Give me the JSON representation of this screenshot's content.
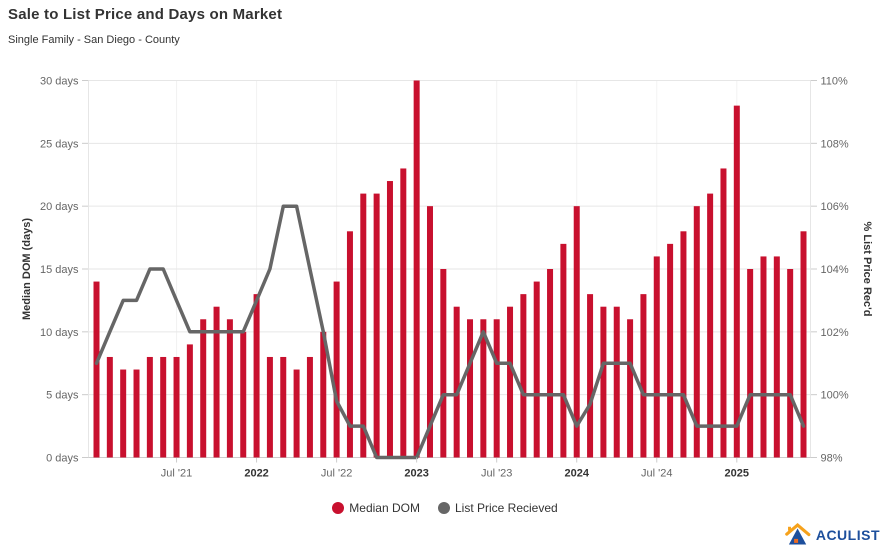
{
  "header": {
    "title": "Sale to List Price and Days on Market",
    "subtitle": "Single Family - San Diego - County"
  },
  "chart_data": {
    "type": "combo-bar-line",
    "x": [
      "Jan '21",
      "Feb '21",
      "Mar '21",
      "Apr '21",
      "May '21",
      "Jun '21",
      "Jul '21",
      "Aug '21",
      "Sep '21",
      "Oct '21",
      "Nov '21",
      "Dec '21",
      "Jan '22",
      "Feb '22",
      "Mar '22",
      "Apr '22",
      "May '22",
      "Jun '22",
      "Jul '22",
      "Aug '22",
      "Sep '22",
      "Oct '22",
      "Nov '22",
      "Dec '22",
      "Jan '23",
      "Feb '23",
      "Mar '23",
      "Apr '23",
      "May '23",
      "Jun '23",
      "Jul '23",
      "Aug '23",
      "Sep '23",
      "Oct '23",
      "Nov '23",
      "Dec '23",
      "Jan '24",
      "Feb '24",
      "Mar '24",
      "Apr '24",
      "May '24",
      "Jun '24",
      "Jul '24",
      "Aug '24",
      "Sep '24",
      "Oct '24",
      "Nov '24",
      "Dec '24",
      "Jan '25",
      "Feb '25",
      "Mar '25",
      "Apr '25",
      "May '25",
      "Jun '25"
    ],
    "series": [
      {
        "name": "Median DOM",
        "type": "bar",
        "axis": "left",
        "color": "#c8102e",
        "values": [
          14,
          8,
          7,
          7,
          8,
          8,
          8,
          9,
          11,
          12,
          11,
          10,
          13,
          8,
          8,
          7,
          8,
          10,
          14,
          18,
          21,
          21,
          22,
          23,
          30,
          20,
          15,
          12,
          11,
          11,
          11,
          12,
          13,
          14,
          15,
          17,
          20,
          13,
          12,
          12,
          11,
          13,
          16,
          17,
          18,
          20,
          21,
          23,
          28,
          15,
          16,
          16,
          15,
          18
        ]
      },
      {
        "name": "List Price Recieved",
        "type": "line",
        "axis": "right",
        "color": "#666666",
        "values": [
          101,
          102,
          103,
          103,
          104,
          104,
          103,
          102,
          102,
          102,
          102,
          102,
          103,
          104,
          106,
          106,
          104,
          102,
          99.8,
          99,
          99,
          98,
          98,
          98,
          98,
          99,
          100,
          100,
          101,
          102,
          101,
          101,
          100,
          100,
          100,
          100,
          99,
          99.7,
          101,
          101,
          101,
          100,
          100,
          100,
          100,
          99,
          99,
          99,
          99,
          100,
          100,
          100,
          100,
          99
        ]
      }
    ],
    "axes": {
      "left": {
        "title": "Median DOM (days)",
        "min": 0,
        "max": 30,
        "tick_step": 5,
        "tick_suffix": " days"
      },
      "right": {
        "title": "% List Price Rec'd",
        "min": 98,
        "max": 110,
        "tick_step": 2,
        "tick_suffix": "%"
      }
    },
    "x_ticks": [
      {
        "index": 6,
        "label": "Jul '21",
        "bold": false
      },
      {
        "index": 12,
        "label": "2022",
        "bold": true
      },
      {
        "index": 18,
        "label": "Jul '22",
        "bold": false
      },
      {
        "index": 24,
        "label": "2023",
        "bold": true
      },
      {
        "index": 30,
        "label": "Jul '23",
        "bold": false
      },
      {
        "index": 36,
        "label": "2024",
        "bold": true
      },
      {
        "index": 42,
        "label": "Jul '24",
        "bold": false
      },
      {
        "index": 48,
        "label": "2025",
        "bold": true
      }
    ],
    "grid": true,
    "legend_position": "bottom"
  },
  "legend": {
    "items": [
      {
        "label": "Median DOM",
        "color": "#c8102e"
      },
      {
        "label": "List Price Recieved",
        "color": "#666666"
      }
    ]
  },
  "logo": {
    "text": "ACULIST",
    "navy": "#1d4f9c",
    "orange": "#f6a21c",
    "accent": "#ed6b21"
  },
  "colors": {
    "grid": "#e6e6e6",
    "axis_line": "#cccccc",
    "tick_label": "#666666",
    "year_label": "#333333"
  }
}
